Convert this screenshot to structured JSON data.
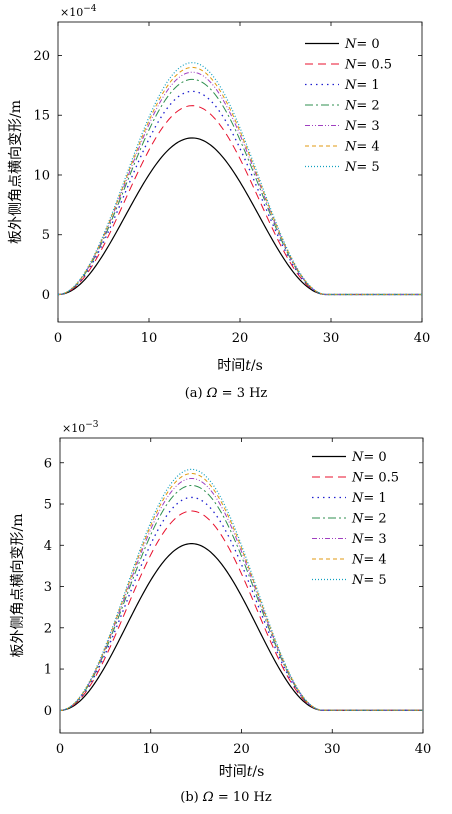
{
  "chart_data": [
    {
      "id": "a",
      "type": "line",
      "caption": "(a) Ω = 3 Hz",
      "caption_prefix": "(a)",
      "caption_symbol": "Ω",
      "caption_value": "= 3 Hz",
      "xlabel": "时间t/s",
      "xlabel_cn": "时间",
      "xlabel_var": "t",
      "xlabel_unit": "/s",
      "ylabel": "板外侧角点横向变形/m",
      "y_multiplier": "×10⁻⁴",
      "y_multiplier_base": "×10",
      "y_multiplier_exp": "−4",
      "xlim": [
        0,
        40
      ],
      "ylim": [
        -2.3,
        22.8
      ],
      "xticks": [
        0,
        10,
        20,
        30,
        40
      ],
      "yticks": [
        0,
        5,
        10,
        15,
        20
      ],
      "grid": false,
      "legend_position": "top-right",
      "pulse_start": 0,
      "pulse_end": 29.5,
      "series": [
        {
          "name": "N = 0",
          "symbol": "N",
          "value": "= 0",
          "peak": 13.1,
          "color": "#000000",
          "dash": "",
          "width": 1.2
        },
        {
          "name": "N = 0.5",
          "symbol": "N",
          "value": "= 0.5",
          "peak": 15.8,
          "color": "#e8112d",
          "dash": "8,5",
          "width": 1.0
        },
        {
          "name": "N = 1",
          "symbol": "N",
          "value": "= 1",
          "peak": 17.0,
          "color": "#1f1fcf",
          "dash": "1.5,4",
          "width": 1.3
        },
        {
          "name": "N = 2",
          "symbol": "N",
          "value": "= 2",
          "peak": 18.0,
          "color": "#2f8f4f",
          "dash": "8,3,2,3",
          "width": 1.0
        },
        {
          "name": "N = 3",
          "symbol": "N",
          "value": "= 3",
          "peak": 18.6,
          "color": "#a040c0",
          "dash": "5,2,1,2,1,2",
          "width": 1.0
        },
        {
          "name": "N = 4",
          "symbol": "N",
          "value": "= 4",
          "peak": 19.0,
          "color": "#e09a10",
          "dash": "4,3",
          "width": 1.0
        },
        {
          "name": "N = 5",
          "symbol": "N",
          "value": "= 5",
          "peak": 19.4,
          "color": "#10a0c0",
          "dash": "1,2",
          "width": 1.2
        }
      ]
    },
    {
      "id": "b",
      "type": "line",
      "caption": "(b) Ω = 10 Hz",
      "caption_prefix": "(b)",
      "caption_symbol": "Ω",
      "caption_value": "= 10 Hz",
      "xlabel": "时间t/s",
      "xlabel_cn": "时间",
      "xlabel_var": "t",
      "xlabel_unit": "/s",
      "ylabel": "板外侧角点横向变形/m",
      "y_multiplier": "×10⁻³",
      "y_multiplier_base": "×10",
      "y_multiplier_exp": "−3",
      "xlim": [
        0,
        40
      ],
      "ylim": [
        -0.55,
        6.6
      ],
      "xticks": [
        0,
        10,
        20,
        30,
        40
      ],
      "yticks": [
        0,
        1,
        2,
        3,
        4,
        5,
        6
      ],
      "grid": false,
      "legend_position": "top-right",
      "pulse_start": 0,
      "pulse_end": 29.0,
      "series": [
        {
          "name": "N = 0",
          "symbol": "N",
          "value": "= 0",
          "peak": 4.04,
          "color": "#000000",
          "dash": "",
          "width": 1.2
        },
        {
          "name": "N = 0.5",
          "symbol": "N",
          "value": "= 0.5",
          "peak": 4.83,
          "color": "#e8112d",
          "dash": "8,5",
          "width": 1.0
        },
        {
          "name": "N = 1",
          "symbol": "N",
          "value": "= 1",
          "peak": 5.16,
          "color": "#1f1fcf",
          "dash": "1.5,4",
          "width": 1.3
        },
        {
          "name": "N = 2",
          "symbol": "N",
          "value": "= 2",
          "peak": 5.45,
          "color": "#2f8f4f",
          "dash": "8,3,2,3",
          "width": 1.0
        },
        {
          "name": "N = 3",
          "symbol": "N",
          "value": "= 3",
          "peak": 5.62,
          "color": "#a040c0",
          "dash": "5,2,1,2,1,2",
          "width": 1.0
        },
        {
          "name": "N = 4",
          "symbol": "N",
          "value": "= 4",
          "peak": 5.74,
          "color": "#e09a10",
          "dash": "4,3",
          "width": 1.0
        },
        {
          "name": "N = 5",
          "symbol": "N",
          "value": "= 5",
          "peak": 5.84,
          "color": "#10a0c0",
          "dash": "1,2",
          "width": 1.2
        }
      ]
    }
  ]
}
